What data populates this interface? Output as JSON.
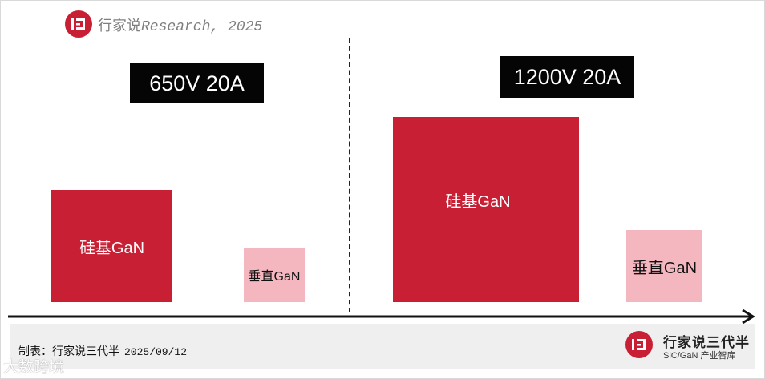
{
  "header": {
    "brand": "行家说",
    "source": "Research, 2025"
  },
  "chart_data": {
    "type": "area-comparison",
    "panels": [
      {
        "spec_label": "650V 20A",
        "blocks": [
          {
            "label": "硅基GaN",
            "color": "#c91f34",
            "text_color": "#ffffff"
          },
          {
            "label": "垂直GaN",
            "color": "#f4b6bf",
            "text_color": "#111111"
          }
        ]
      },
      {
        "spec_label": "1200V 20A",
        "blocks": [
          {
            "label": "硅基GaN",
            "color": "#c91f34",
            "text_color": "#ffffff"
          },
          {
            "label": "垂直GaN",
            "color": "#f4b6bf",
            "text_color": "#111111"
          }
        ]
      }
    ]
  },
  "footer": {
    "credit": "制表：行家说三代半",
    "date": "2025/09/12",
    "brand_name": "行家说三代半",
    "brand_tagline": "SiC/GaN 产业智库"
  },
  "watermark": "大数跨境",
  "icons": [
    "logo-icon",
    "arrow-icon"
  ]
}
